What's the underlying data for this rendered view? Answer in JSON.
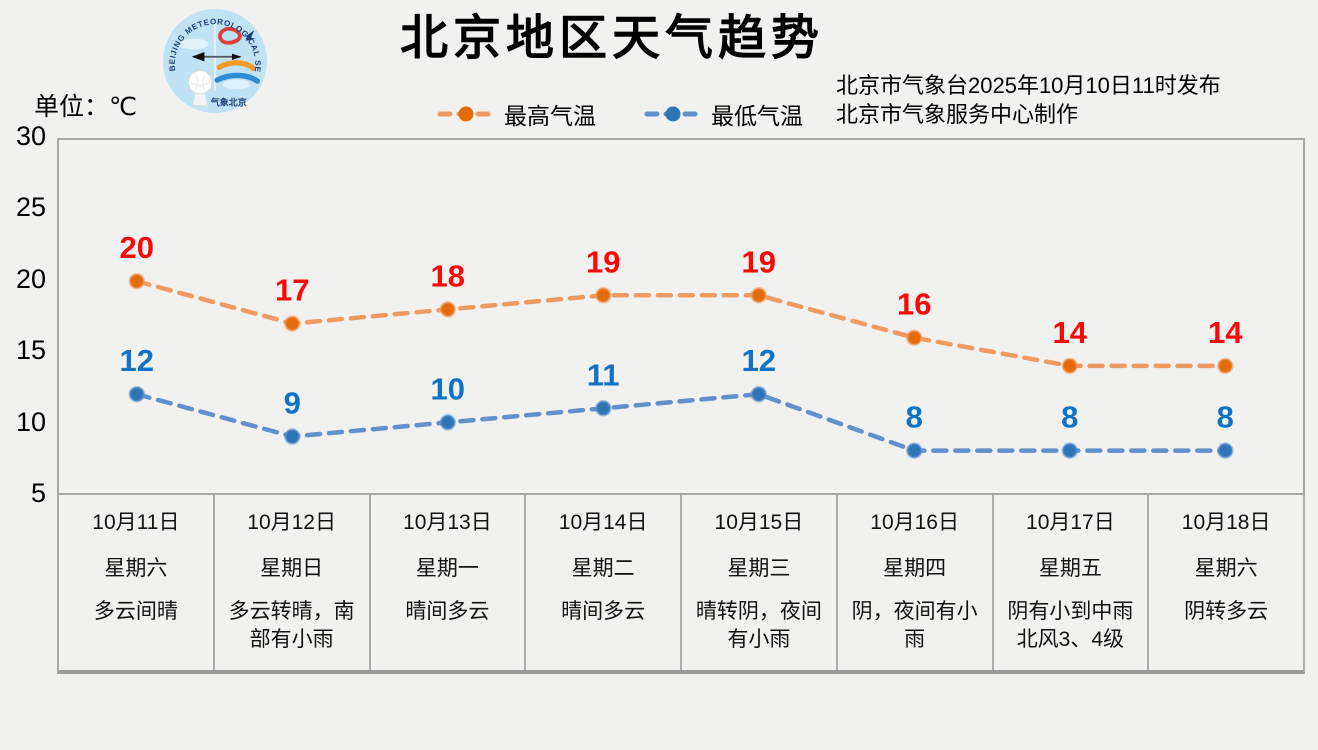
{
  "header": {
    "title": "北京地区天气趋势",
    "publish_line1": "北京市气象台2025年10月10日11时发布",
    "publish_line2": "北京市气象服务中心制作",
    "unit_label": "单位：℃",
    "logo": {
      "arc_text": "BEIJING METEOROLOGICAL SERVICE",
      "bottom_text": "气象北京"
    }
  },
  "legend": [
    {
      "label": "最高气温",
      "line_color": "#f09a63",
      "marker_color": "#e56b0a"
    },
    {
      "label": "最低气温",
      "line_color": "#6190cc",
      "marker_color": "#2e75b6"
    }
  ],
  "chart_data": {
    "type": "line",
    "title": "北京地区天气趋势",
    "xlabel": "",
    "ylabel": "单位：℃",
    "categories": [
      "10月11日",
      "10月12日",
      "10月13日",
      "10月14日",
      "10月15日",
      "10月16日",
      "10月17日",
      "10月18日"
    ],
    "weekdays": [
      "星期六",
      "星期日",
      "星期一",
      "星期二",
      "星期三",
      "星期四",
      "星期五",
      "星期六"
    ],
    "series": [
      {
        "name": "最高气温",
        "values": [
          20,
          17,
          18,
          19,
          19,
          16,
          14,
          14
        ],
        "line_color": "#f09a63",
        "marker_color": "#e56b0a",
        "label_color": "#fb0806",
        "line_style": "dashed"
      },
      {
        "name": "最低气温",
        "values": [
          12,
          9,
          10,
          11,
          12,
          8,
          8,
          8
        ],
        "line_color": "#6190cc",
        "marker_color": "#2e75b6",
        "label_color": "#0e72c6",
        "line_style": "dashed"
      }
    ],
    "y_ticks": [
      30,
      25,
      20,
      15,
      10,
      5
    ],
    "ylim": [
      5,
      30
    ],
    "grid": false,
    "legend_position": "top",
    "data_labels": true
  },
  "table": {
    "columns": [
      {
        "date": "10月11日",
        "weekday": "星期六",
        "weather": "多云间晴",
        "weather_lines": [
          "多云间晴"
        ]
      },
      {
        "date": "10月12日",
        "weekday": "星期日",
        "weather": "多云转晴，南部有小雨",
        "weather_lines": [
          "多云转晴，南",
          "部有小雨"
        ]
      },
      {
        "date": "10月13日",
        "weekday": "星期一",
        "weather": "晴间多云",
        "weather_lines": [
          "晴间多云"
        ]
      },
      {
        "date": "10月14日",
        "weekday": "星期二",
        "weather": "晴间多云",
        "weather_lines": [
          "晴间多云"
        ]
      },
      {
        "date": "10月15日",
        "weekday": "星期三",
        "weather": "晴转阴，夜间有小雨",
        "weather_lines": [
          "晴转阴，夜间",
          "有小雨"
        ]
      },
      {
        "date": "10月16日",
        "weekday": "星期四",
        "weather": "阴，夜间有小雨",
        "weather_lines": [
          "阴，夜间有小",
          "雨"
        ]
      },
      {
        "date": "10月17日",
        "weekday": "星期五",
        "weather": "阴有小到中雨北风3、4级",
        "weather_lines": [
          "阴有小到中雨",
          "北风3、4级"
        ]
      },
      {
        "date": "10月18日",
        "weekday": "星期六",
        "weather": "阴转多云",
        "weather_lines": [
          "阴转多云"
        ]
      }
    ]
  },
  "colors": {
    "background": "#f1f1f0",
    "plot_border": "#a7a7a7",
    "table_line": "#ababab",
    "high_label": "#fb0806",
    "low_label": "#0e72c6"
  }
}
